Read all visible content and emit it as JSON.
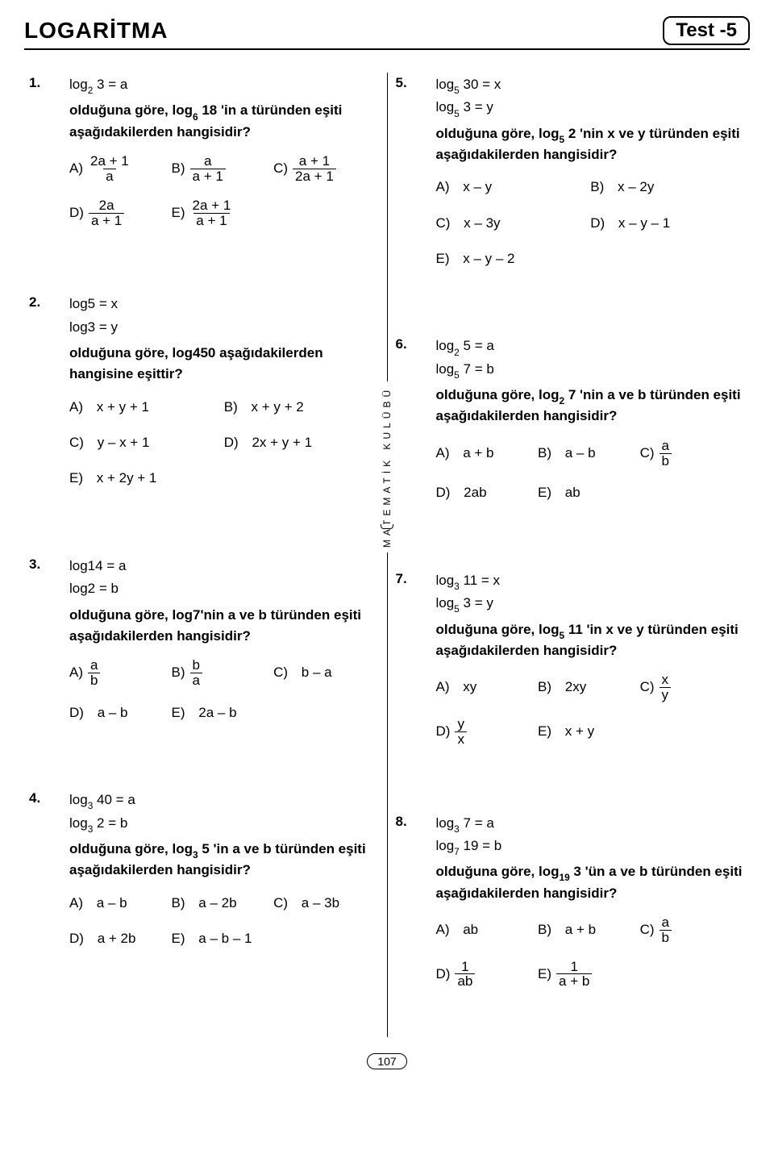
{
  "header": {
    "title": "LOGARİTMA",
    "test_label": "Test -5"
  },
  "vertical_label": "MATEMATİK KULÜBÜ",
  "page_number": "107",
  "q1": {
    "num": "1.",
    "given1_pre": "log",
    "given1_sub": "2",
    "given1_post": " 3 = a",
    "prompt_pre": "olduğuna göre, log",
    "prompt_sub": "6",
    "prompt_mid": " 18 'in a türünden eşiti aşağıdakilerden hangisidir?",
    "A_n": "2a + 1",
    "A_d": "a",
    "B_n": "a",
    "B_d": "a + 1",
    "C_n": "a + 1",
    "C_d": "2a + 1",
    "D_n": "2a",
    "D_d": "a + 1",
    "E_n": "2a + 1",
    "E_d": "a + 1"
  },
  "q2": {
    "num": "2.",
    "given1": "log5 = x",
    "given2": "log3 = y",
    "prompt": "olduğuna göre, log450 aşağıdakilerden hangisine eşittir?",
    "A": "x + y + 1",
    "B": "x + y + 2",
    "C": "y – x + 1",
    "D": "2x + y + 1",
    "E": "x + 2y + 1"
  },
  "q3": {
    "num": "3.",
    "given1": "log14 = a",
    "given2": "log2 = b",
    "prompt": "olduğuna göre, log7'nin a ve b türünden eşiti aşağıdakilerden hangisidir?",
    "A_n": "a",
    "A_d": "b",
    "B_n": "b",
    "B_d": "a",
    "C": "b – a",
    "D": "a – b",
    "E": "2a – b"
  },
  "q4": {
    "num": "4.",
    "g1_pre": "log",
    "g1_sub": "3",
    "g1_post": " 40 = a",
    "g2_pre": "log",
    "g2_sub": "3",
    "g2_post": " 2 = b",
    "prompt_pre": "olduğuna göre, log",
    "prompt_sub": "3",
    "prompt_post": " 5 'in a ve b türünden eşiti aşağıdakilerden hangisidir?",
    "A": "a – b",
    "B": "a – 2b",
    "C": "a – 3b",
    "D": "a + 2b",
    "E": "a – b – 1"
  },
  "q5": {
    "num": "5.",
    "g1_pre": "log",
    "g1_sub": "5",
    "g1_post": " 30 = x",
    "g2_pre": "log",
    "g2_sub": "5",
    "g2_post": " 3 = y",
    "prompt_pre": "olduğuna göre, log",
    "prompt_sub": "5",
    "prompt_post": " 2 'nin x ve y türünden eşiti aşağıdakilerden hangisidir?",
    "A": "x – y",
    "B": "x – 2y",
    "C": "x – 3y",
    "D": "x – y – 1",
    "E": "x – y – 2"
  },
  "q6": {
    "num": "6.",
    "g1_pre": "log",
    "g1_sub": "2",
    "g1_post": " 5 = a",
    "g2_pre": "log",
    "g2_sub": "5",
    "g2_post": " 7 = b",
    "prompt_pre": "olduğuna göre, log",
    "prompt_sub": "2",
    "prompt_post": " 7 'nin a ve b türünden eşiti aşağıdakilerden hangisidir?",
    "A": "a + b",
    "B": "a – b",
    "C_n": "a",
    "C_d": "b",
    "D": "2ab",
    "E": "ab"
  },
  "q7": {
    "num": "7.",
    "g1_pre": "log",
    "g1_sub": "3",
    "g1_post": " 11 = x",
    "g2_pre": "log",
    "g2_sub": "5",
    "g2_post": " 3 = y",
    "prompt_pre": "olduğuna göre, log",
    "prompt_sub": "5",
    "prompt_post": " 11 'in x ve y türünden eşiti aşağıdakilerden hangisidir?",
    "A": "xy",
    "B": "2xy",
    "C_n": "x",
    "C_d": "y",
    "D_n": "y",
    "D_d": "x",
    "E": "x + y"
  },
  "q8": {
    "num": "8.",
    "g1_pre": "log",
    "g1_sub": "3",
    "g1_post": " 7 = a",
    "g2_pre": "log",
    "g2_sub": "7",
    "g2_post": " 19 = b",
    "prompt_pre": "olduğuna göre, log",
    "prompt_sub": "19",
    "prompt_post": " 3 'ün a ve b türünden eşiti aşağıdakilerden hangisidir?",
    "A": "ab",
    "B": "a + b",
    "C_n": "a",
    "C_d": "b",
    "D_n": "1",
    "D_d": "ab",
    "E_n": "1",
    "E_d": "a + b"
  },
  "labels": {
    "A": "A)",
    "B": "B)",
    "C": "C)",
    "D": "D)",
    "E": "E)"
  }
}
